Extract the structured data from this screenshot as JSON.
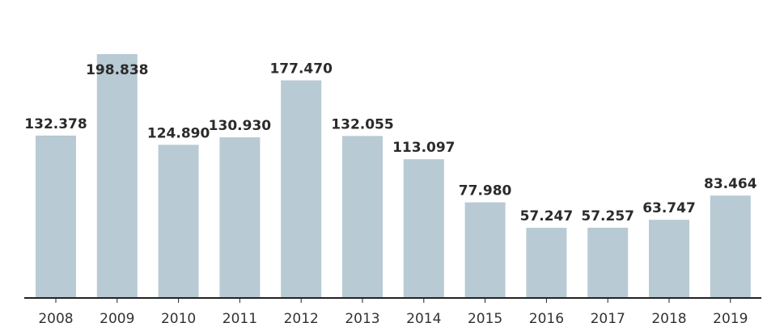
{
  "chart_data": {
    "type": "bar",
    "title": "",
    "xlabel": "",
    "ylabel": "",
    "categories": [
      "2008",
      "2009",
      "2010",
      "2011",
      "2012",
      "2013",
      "2014",
      "2015",
      "2016",
      "2017",
      "2018",
      "2019"
    ],
    "values": [
      132378,
      198838,
      124890,
      130930,
      177470,
      132055,
      113097,
      77980,
      57247,
      57257,
      63747,
      83464
    ],
    "value_labels": [
      "132.378",
      "198.838",
      "124.890",
      "130.930",
      "177.470",
      "132.055",
      "113.097",
      "77.980",
      "57.247",
      "57.257",
      "63.747",
      "83.464"
    ],
    "ylim": [
      0,
      198838
    ],
    "grid": false,
    "colors": {
      "bar": "#b8cad3",
      "axis": "#222222",
      "label": "#2b2b2b"
    }
  }
}
